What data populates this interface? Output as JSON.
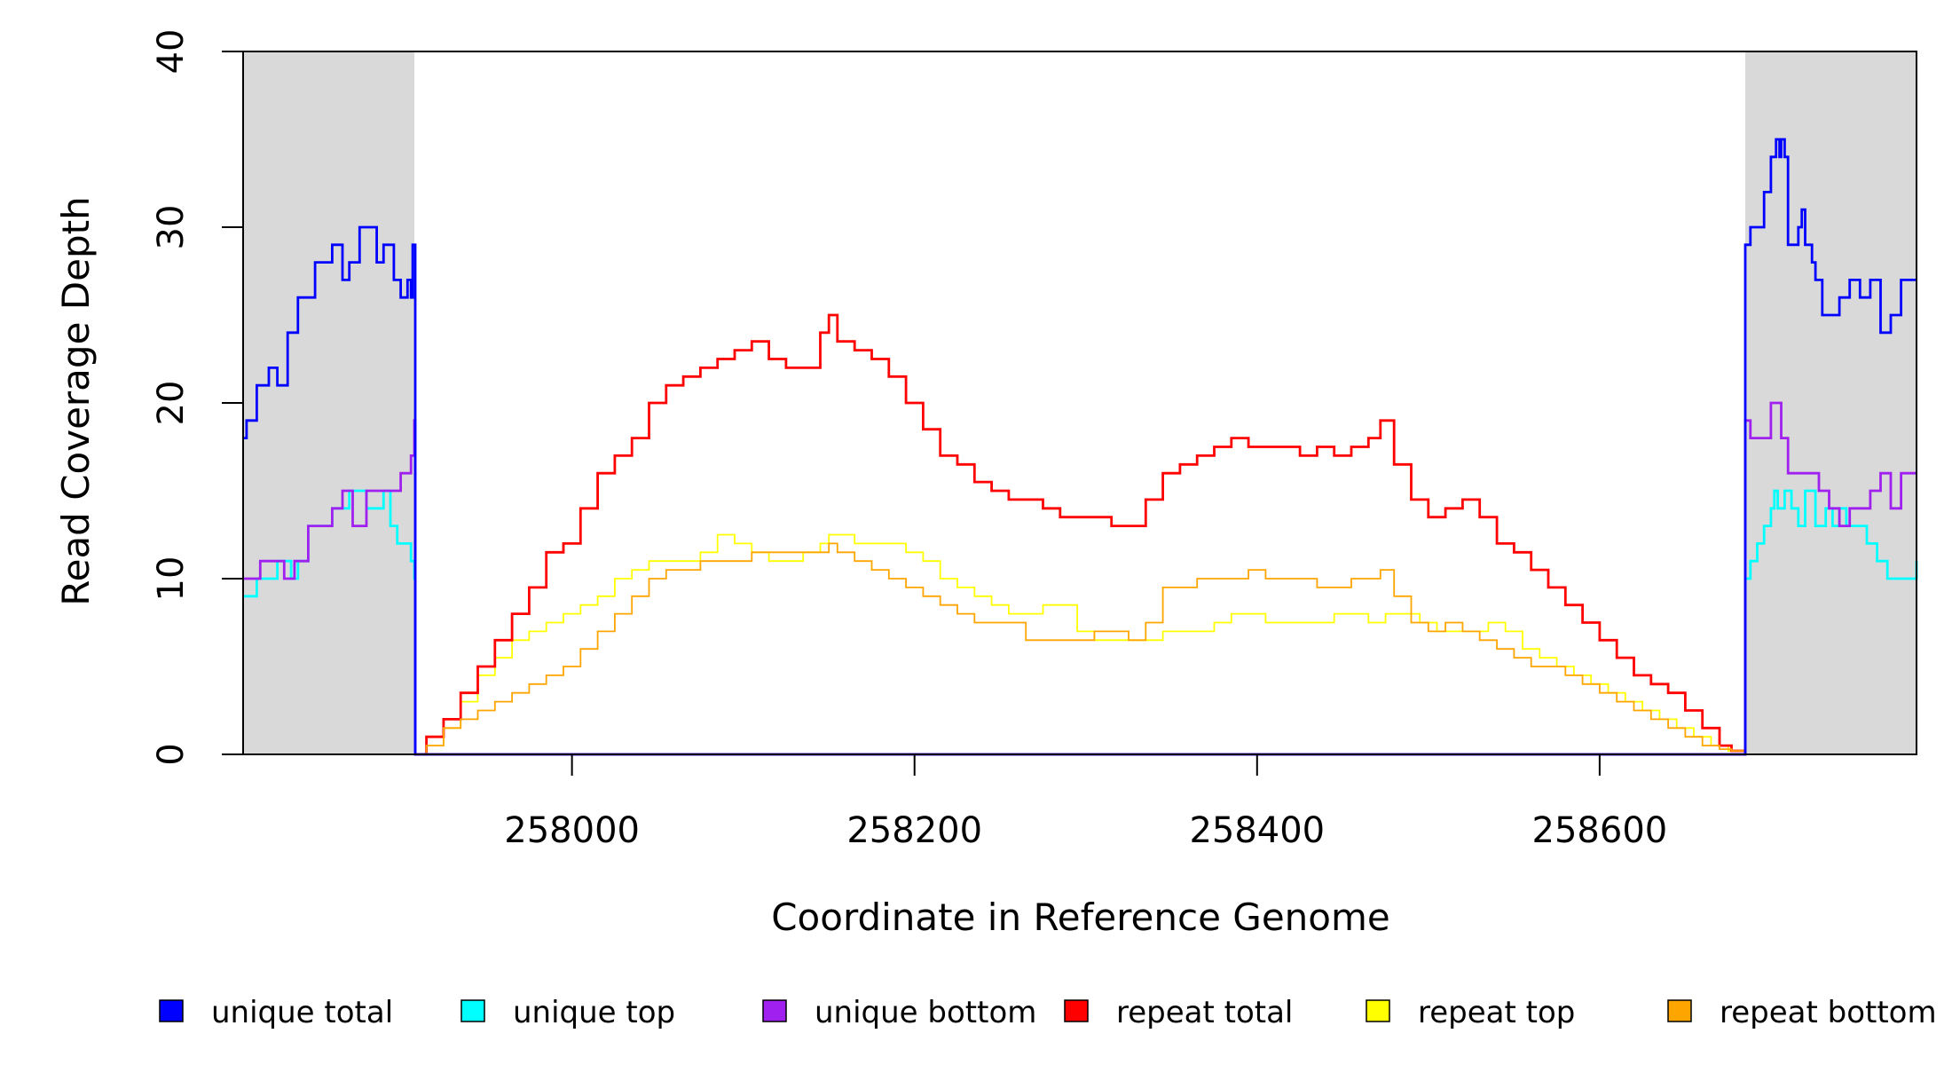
{
  "chart_data": {
    "type": "line",
    "title": "",
    "xlabel": "Coordinate in Reference Genome",
    "ylabel": "Read Coverage Depth",
    "xlim": [
      257808,
      258785
    ],
    "ylim": [
      0,
      40
    ],
    "x_ticks": [
      258000,
      258200,
      258400,
      258600
    ],
    "x_tick_labels": [
      "258000",
      "258200",
      "258400",
      "258600"
    ],
    "y_ticks": [
      0,
      10,
      20,
      30,
      40
    ],
    "y_tick_labels": [
      "0",
      "10",
      "20",
      "30",
      "40"
    ],
    "grid": false,
    "legend_position": "bottom",
    "shaded_regions": [
      {
        "x0": 257808,
        "x1": 257908,
        "color": "#d9d9d9"
      },
      {
        "x0": 258685,
        "x1": 258785,
        "color": "#d9d9d9"
      }
    ],
    "series": [
      {
        "name": "unique total",
        "color": "#0000ff",
        "x": [
          257808,
          257810,
          257813,
          257816,
          257818,
          257823,
          257828,
          257834,
          257840,
          257845,
          257850,
          257860,
          257866,
          257870,
          257876,
          257880,
          257886,
          257890,
          257896,
          257900,
          257904,
          257906,
          257907,
          257908,
          257908.5,
          258684.5,
          258685,
          258688,
          258692,
          258696,
          258700,
          258703,
          258705,
          258706,
          258708,
          258710,
          258712,
          258716,
          258718,
          258720,
          258724,
          258726,
          258730,
          258734,
          258740,
          258746,
          258752,
          258758,
          258764,
          258770,
          258776,
          258780,
          258785
        ],
        "y": [
          18,
          19,
          19,
          21,
          21,
          22,
          21,
          24,
          26,
          26,
          28,
          29,
          27,
          28,
          30,
          30,
          28,
          29,
          27,
          26,
          27,
          26,
          29,
          29,
          0,
          0,
          29,
          30,
          30,
          32,
          34,
          35,
          34,
          35,
          34,
          29,
          29,
          30,
          31,
          29,
          28,
          27,
          25,
          25,
          26,
          27,
          26,
          27,
          24,
          25,
          27,
          27,
          27
        ]
      },
      {
        "name": "unique top",
        "color": "#00ffff",
        "x": [
          257808,
          257812,
          257816,
          257822,
          257828,
          257832,
          257836,
          257840,
          257846,
          257852,
          257860,
          257866,
          257870,
          257880,
          257890,
          257894,
          257898,
          257902,
          257906,
          257908,
          257908.5,
          258684.5,
          258685,
          258688,
          258692,
          258696,
          258700,
          258702,
          258704,
          258708,
          258712,
          258716,
          258720,
          258726,
          258732,
          258736,
          258740,
          258744,
          258750,
          258756,
          258762,
          258768,
          258774,
          258780,
          258785
        ],
        "y": [
          9,
          9,
          10,
          10,
          11,
          11,
          10,
          11,
          13,
          13,
          14,
          14,
          15,
          14,
          15,
          13,
          12,
          12,
          11,
          10,
          0,
          0,
          10,
          11,
          12,
          13,
          14,
          15,
          14,
          15,
          14,
          13,
          15,
          13,
          14,
          13,
          14,
          13,
          13,
          12,
          11,
          10,
          10,
          10,
          11
        ]
      },
      {
        "name": "unique bottom",
        "color": "#a020f0",
        "x": [
          257808,
          257812,
          257818,
          257826,
          257832,
          257838,
          257846,
          257854,
          257860,
          257866,
          257872,
          257880,
          257888,
          257894,
          257900,
          257904,
          257906,
          257908,
          257908.5,
          258684.5,
          258685,
          258688,
          258694,
          258700,
          258702,
          258706,
          258710,
          258716,
          258722,
          258728,
          258734,
          258740,
          258746,
          258752,
          258758,
          258764,
          258770,
          258776,
          258780,
          258785
        ],
        "y": [
          10,
          10,
          11,
          11,
          10,
          11,
          13,
          13,
          14,
          15,
          13,
          15,
          15,
          15,
          16,
          16,
          17,
          19,
          0,
          0,
          19,
          18,
          18,
          20,
          20,
          18,
          16,
          16,
          16,
          15,
          14,
          13,
          14,
          14,
          15,
          16,
          14,
          16,
          16,
          16
        ]
      },
      {
        "name": "repeat total",
        "color": "#ff0000",
        "x": [
          257908,
          257915,
          257925,
          257935,
          257945,
          257955,
          257965,
          257975,
          257985,
          257995,
          258005,
          258015,
          258025,
          258035,
          258045,
          258055,
          258065,
          258075,
          258085,
          258095,
          258105,
          258115,
          258125,
          258135,
          258145,
          258150,
          258155,
          258165,
          258175,
          258185,
          258195,
          258205,
          258215,
          258225,
          258235,
          258245,
          258255,
          258265,
          258275,
          258285,
          258295,
          258305,
          258315,
          258325,
          258335,
          258345,
          258355,
          258365,
          258375,
          258385,
          258395,
          258405,
          258415,
          258425,
          258435,
          258445,
          258455,
          258465,
          258472,
          258480,
          258490,
          258500,
          258510,
          258520,
          258530,
          258540,
          258550,
          258560,
          258570,
          258580,
          258590,
          258600,
          258610,
          258620,
          258630,
          258640,
          258650,
          258660,
          258670,
          258677,
          258685
        ],
        "y": [
          0,
          1,
          2,
          3.5,
          5,
          6.5,
          8,
          9.5,
          11.5,
          12,
          14,
          16,
          17,
          18,
          20,
          21,
          21.5,
          22,
          22.5,
          23,
          23.5,
          22.5,
          22,
          22,
          24,
          25,
          23.5,
          23,
          22.5,
          21.5,
          20,
          18.5,
          17,
          16.5,
          15.5,
          15,
          14.5,
          14.5,
          14,
          13.5,
          13.5,
          13.5,
          13,
          13,
          14.5,
          16,
          16.5,
          17,
          17.5,
          18,
          17.5,
          17.5,
          17.5,
          17,
          17.5,
          17,
          17.5,
          18,
          19,
          16.5,
          14.5,
          13.5,
          14,
          14.5,
          13.5,
          12,
          11.5,
          10.5,
          9.5,
          8.5,
          7.5,
          6.5,
          5.5,
          4.5,
          4,
          3.5,
          2.5,
          1.5,
          0.5,
          0.2,
          0
        ]
      },
      {
        "name": "repeat top",
        "color": "#ffff00",
        "x": [
          257908,
          257915,
          257925,
          257935,
          257945,
          257955,
          257965,
          257975,
          257985,
          257995,
          258005,
          258015,
          258025,
          258035,
          258045,
          258055,
          258065,
          258075,
          258085,
          258095,
          258105,
          258115,
          258125,
          258135,
          258145,
          258150,
          258155,
          258165,
          258175,
          258185,
          258195,
          258205,
          258215,
          258225,
          258235,
          258245,
          258255,
          258265,
          258275,
          258285,
          258295,
          258305,
          258315,
          258325,
          258335,
          258345,
          258355,
          258365,
          258375,
          258385,
          258395,
          258405,
          258415,
          258425,
          258435,
          258445,
          258455,
          258465,
          258475,
          258485,
          258495,
          258505,
          258515,
          258525,
          258535,
          258545,
          258555,
          258565,
          258575,
          258585,
          258595,
          258605,
          258615,
          258625,
          258635,
          258645,
          258655,
          258665,
          258675,
          258685
        ],
        "y": [
          0,
          0.5,
          1.5,
          3,
          4.5,
          5.5,
          6.5,
          7,
          7.5,
          8,
          8.5,
          9,
          10,
          10.5,
          11,
          11,
          11,
          11.5,
          12.5,
          12,
          11.5,
          11,
          11,
          11.5,
          12,
          12.5,
          12.5,
          12,
          12,
          12,
          11.5,
          11,
          10,
          9.5,
          9,
          8.5,
          8,
          8,
          8.5,
          8.5,
          7,
          6.5,
          6.5,
          6.5,
          6.5,
          7,
          7,
          7,
          7.5,
          8,
          8,
          7.5,
          7.5,
          7.5,
          7.5,
          8,
          8,
          7.5,
          8,
          8,
          7.5,
          7,
          7,
          7,
          7.5,
          7,
          6,
          5.5,
          5,
          4.5,
          4,
          3.5,
          3,
          2.5,
          2,
          1.5,
          1,
          0.5,
          0.2,
          0
        ]
      },
      {
        "name": "repeat bottom",
        "color": "#ffa500",
        "x": [
          257908,
          257915,
          257925,
          257935,
          257945,
          257955,
          257965,
          257975,
          257985,
          257995,
          258005,
          258015,
          258025,
          258035,
          258045,
          258055,
          258065,
          258075,
          258085,
          258095,
          258105,
          258115,
          258125,
          258135,
          258145,
          258150,
          258155,
          258165,
          258175,
          258185,
          258195,
          258205,
          258215,
          258225,
          258235,
          258245,
          258255,
          258265,
          258275,
          258285,
          258295,
          258305,
          258315,
          258325,
          258335,
          258345,
          258355,
          258365,
          258375,
          258385,
          258395,
          258405,
          258415,
          258425,
          258435,
          258445,
          258455,
          258465,
          258472,
          258480,
          258490,
          258500,
          258510,
          258520,
          258530,
          258540,
          258550,
          258560,
          258570,
          258580,
          258590,
          258600,
          258610,
          258620,
          258630,
          258640,
          258650,
          258660,
          258670,
          258677,
          258685
        ],
        "y": [
          0,
          0.5,
          1.5,
          2,
          2.5,
          3,
          3.5,
          4,
          4.5,
          5,
          6,
          7,
          8,
          9,
          10,
          10.5,
          10.5,
          11,
          11,
          11,
          11.5,
          11.5,
          11.5,
          11.5,
          11.5,
          12,
          11.5,
          11,
          10.5,
          10,
          9.5,
          9,
          8.5,
          8,
          7.5,
          7.5,
          7.5,
          6.5,
          6.5,
          6.5,
          6.5,
          7,
          7,
          6.5,
          7.5,
          9.5,
          9.5,
          10,
          10,
          10,
          10.5,
          10,
          10,
          10,
          9.5,
          9.5,
          10,
          10,
          10.5,
          9,
          7.5,
          7,
          7.5,
          7,
          6.5,
          6,
          5.5,
          5,
          5,
          4.5,
          4,
          3.5,
          3,
          2.5,
          2,
          1.5,
          1,
          0.5,
          0.3,
          0.2,
          0
        ]
      }
    ]
  }
}
